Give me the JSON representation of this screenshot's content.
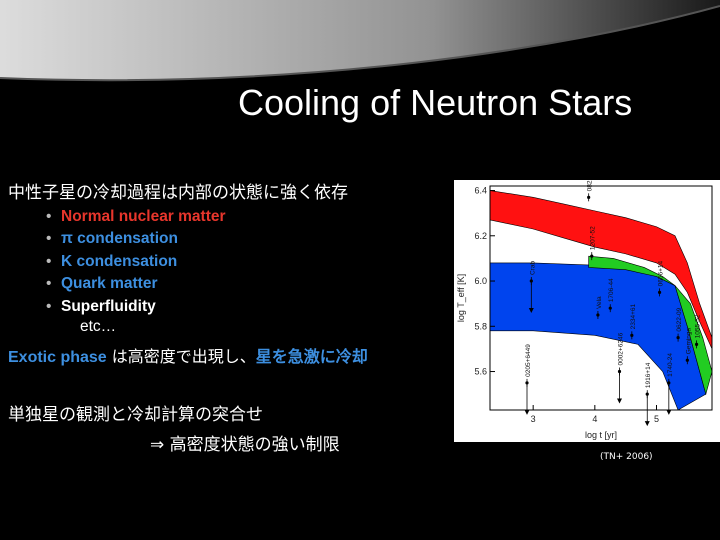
{
  "slide": {
    "title": "Cooling of Neutron Stars",
    "subtitle": "中性子星の冷却過程は内部の状態に強く依存",
    "bullets": [
      {
        "text": "Normal nuclear matter",
        "color": "#e8362c"
      },
      {
        "text": "π condensation",
        "color": "#3d8fe0"
      },
      {
        "text": "K condensation",
        "color": "#3d8fe0"
      },
      {
        "text": "Quark matter",
        "color": "#3d8fe0"
      },
      {
        "text": "Superfluidity",
        "color": "#ffffff"
      }
    ],
    "bullet_marker": "•",
    "etc": "etc…",
    "exotic_line": {
      "part1": "Exotic phase",
      "part2": " は高密度で出現し、",
      "part3": "星を急激に冷却"
    },
    "observation_line": "単独星の観測と冷却計算の突合せ",
    "constraint_line": "⇒ 高密度状態の強い制限",
    "citation": "(TN+ 2006)"
  },
  "chart_data": {
    "type": "area",
    "xlabel": "log t [yr]",
    "ylabel": "log T_eff [K]",
    "xlim": [
      2.3,
      5.9
    ],
    "ylim": [
      5.43,
      6.42
    ],
    "x_ticks": [
      3,
      4,
      5
    ],
    "y_ticks": [
      5.6,
      5.8,
      6.0,
      6.2,
      6.4
    ],
    "bands": [
      {
        "color": "#0044ee",
        "upper": [
          [
            2.3,
            6.08
          ],
          [
            3,
            6.08
          ],
          [
            4,
            6.07
          ],
          [
            4.6,
            6.05
          ],
          [
            5.0,
            6.02
          ],
          [
            5.3,
            5.98
          ],
          [
            5.5,
            5.8
          ],
          [
            5.7,
            5.6
          ],
          [
            5.8,
            5.5
          ]
        ],
        "lower": [
          [
            2.3,
            5.78
          ],
          [
            3,
            5.78
          ],
          [
            4,
            5.76
          ],
          [
            4.7,
            5.72
          ],
          [
            5.1,
            5.6
          ],
          [
            5.35,
            5.43
          ]
        ]
      },
      {
        "color": "#22cc22",
        "upper": [
          [
            3.9,
            6.11
          ],
          [
            4.3,
            6.1
          ],
          [
            4.8,
            6.06
          ],
          [
            5.1,
            6.02
          ],
          [
            5.3,
            5.98
          ],
          [
            5.55,
            5.9
          ],
          [
            5.75,
            5.75
          ],
          [
            5.9,
            5.6
          ]
        ],
        "lower": [
          [
            3.9,
            6.06
          ],
          [
            4.5,
            6.05
          ],
          [
            5.0,
            6.02
          ],
          [
            5.3,
            5.98
          ],
          [
            5.5,
            5.8
          ],
          [
            5.7,
            5.6
          ],
          [
            5.8,
            5.5
          ]
        ]
      },
      {
        "color": "#ff1111",
        "upper": [
          [
            2.3,
            6.4
          ],
          [
            3,
            6.37
          ],
          [
            3.5,
            6.34
          ],
          [
            4,
            6.31
          ],
          [
            4.5,
            6.28
          ],
          [
            5.0,
            6.24
          ],
          [
            5.3,
            6.2
          ],
          [
            5.5,
            6.08
          ],
          [
            5.7,
            5.9
          ],
          [
            5.9,
            5.75
          ]
        ],
        "lower": [
          [
            2.3,
            6.27
          ],
          [
            3,
            6.23
          ],
          [
            3.5,
            6.19
          ],
          [
            4,
            6.15
          ],
          [
            4.5,
            6.12
          ],
          [
            5.0,
            6.08
          ],
          [
            5.3,
            6.03
          ],
          [
            5.5,
            5.95
          ],
          [
            5.7,
            5.82
          ],
          [
            5.9,
            5.7
          ]
        ]
      }
    ],
    "observations": [
      {
        "name": "0822-4300",
        "x": 3.9,
        "y": 6.37,
        "limit": false
      },
      {
        "name": "1207-52",
        "x": 3.95,
        "y": 6.11,
        "limit": false
      },
      {
        "name": "Crab",
        "x": 2.97,
        "y": 6.0,
        "limit": true
      },
      {
        "name": "0205+6449",
        "x": 2.9,
        "y": 5.55,
        "limit": true
      },
      {
        "name": "Vela",
        "x": 4.05,
        "y": 5.85,
        "limit": false
      },
      {
        "name": "1706-44",
        "x": 4.25,
        "y": 5.88,
        "limit": false
      },
      {
        "name": "0002+6246",
        "x": 4.4,
        "y": 5.6,
        "limit": true
      },
      {
        "name": "2334+61",
        "x": 4.6,
        "y": 5.76,
        "limit": false
      },
      {
        "name": "1916+14",
        "x": 4.85,
        "y": 5.5,
        "limit": true
      },
      {
        "name": "0656+14",
        "x": 5.05,
        "y": 5.95,
        "limit": false
      },
      {
        "name": "1740-24",
        "x": 5.2,
        "y": 5.55,
        "limit": true
      },
      {
        "name": "0622-09",
        "x": 5.35,
        "y": 5.75,
        "limit": false
      },
      {
        "name": "1055-52",
        "x": 5.65,
        "y": 5.72,
        "limit": false
      },
      {
        "name": "Geminga",
        "x": 5.5,
        "y": 5.65,
        "limit": false
      }
    ]
  }
}
